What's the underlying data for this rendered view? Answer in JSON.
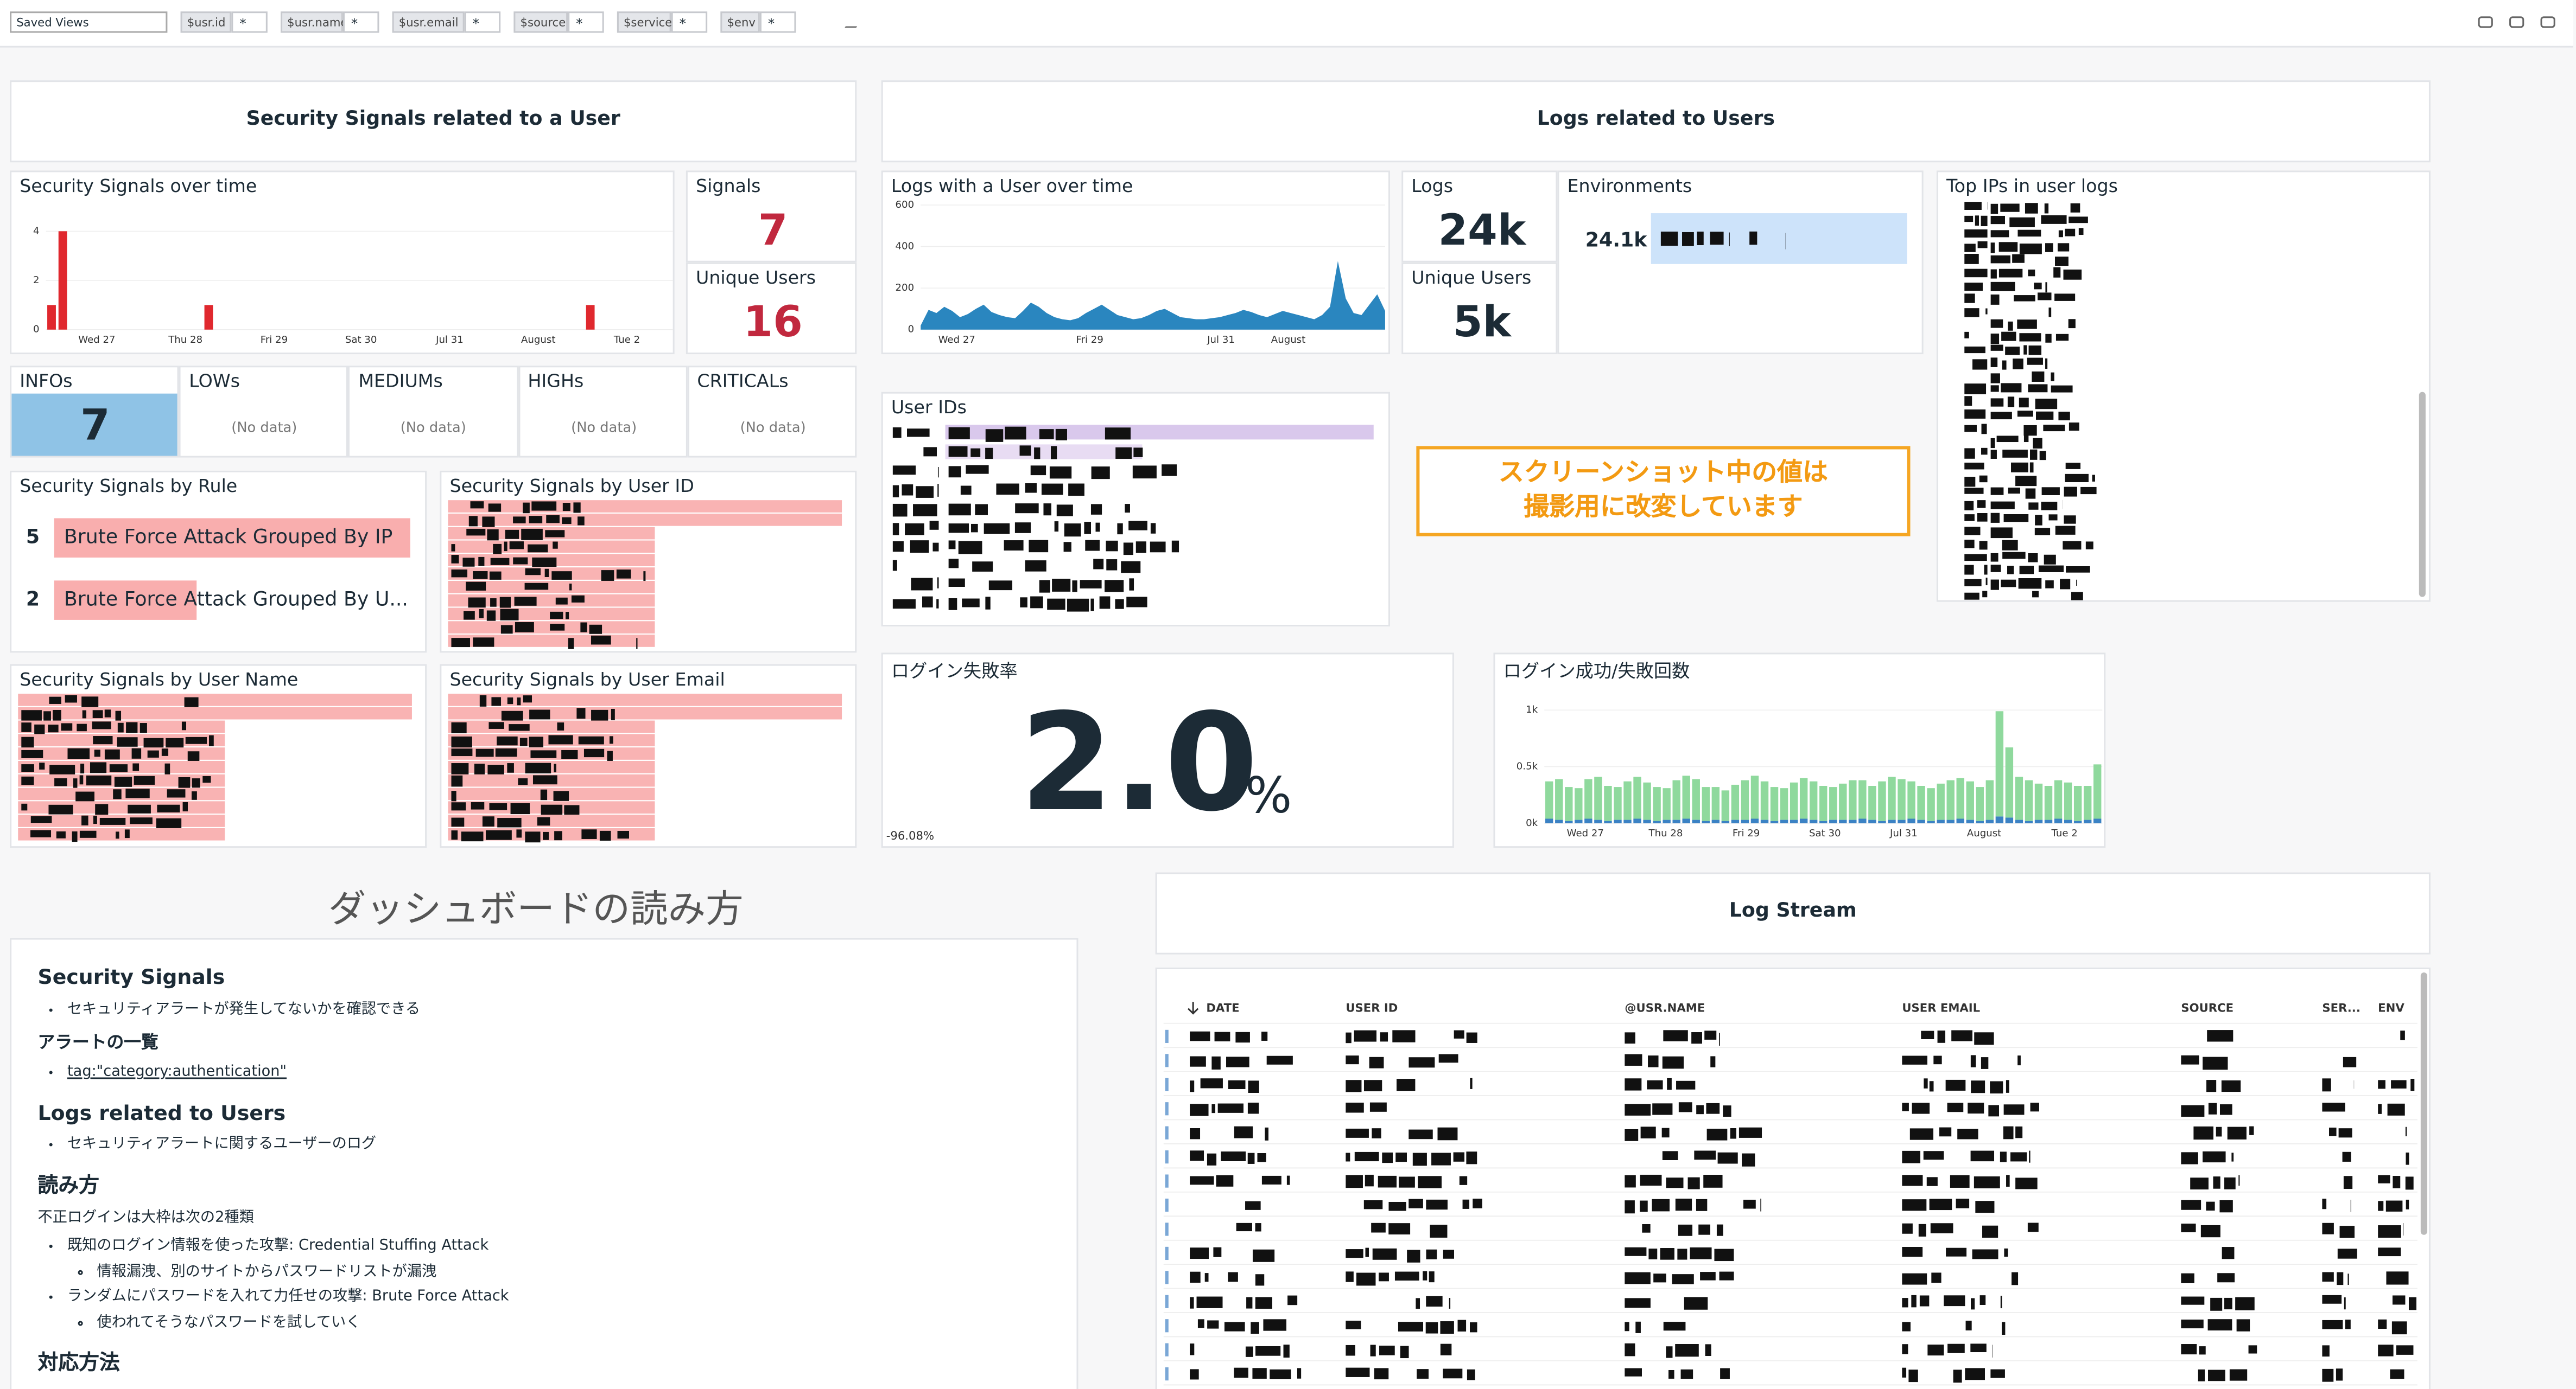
{
  "toolbar": {
    "saved_views": "Saved Views",
    "variables": [
      {
        "name": "$usr.id",
        "value": "*"
      },
      {
        "name": "$usr.name",
        "value": "*"
      },
      {
        "name": "$usr.email",
        "value": "*"
      },
      {
        "name": "$source",
        "value": "*"
      },
      {
        "name": "$service",
        "value": "*"
      },
      {
        "name": "$env",
        "value": "*"
      }
    ]
  },
  "security_group": {
    "title": "Security Signals related to a User"
  },
  "logs_group": {
    "title": "Logs related to Users"
  },
  "signals_over_time": {
    "title": "Security Signals over time",
    "type": "bar",
    "color": "#e0282e",
    "values": [
      1,
      4,
      0,
      0,
      0,
      0,
      0,
      0,
      0,
      0,
      0,
      0,
      0,
      0,
      1,
      0,
      0,
      0,
      0,
      0,
      0,
      0,
      0,
      0,
      0,
      0,
      0,
      0,
      0,
      0,
      0,
      0,
      0,
      0,
      0,
      0,
      0,
      0,
      0,
      0,
      0,
      0,
      0,
      0,
      0,
      0,
      0,
      0,
      1,
      0,
      0,
      0,
      0,
      0,
      0,
      0
    ],
    "ylim": [
      0,
      4.8
    ],
    "yticks": [
      0,
      2,
      4
    ],
    "xtick_labels": [
      "Wed 27",
      "Thu 28",
      "Fri 29",
      "Sat 30",
      "Jul 31",
      "August",
      "Tue 2"
    ]
  },
  "signals": {
    "title": "Signals",
    "value": 7
  },
  "unique_users_signals": {
    "title": "Unique Users",
    "value": 16
  },
  "severity": [
    {
      "title": "INFOs",
      "value": 7
    },
    {
      "title": "LOWs",
      "value": "(No data)"
    },
    {
      "title": "MEDIUMs",
      "value": "(No data)"
    },
    {
      "title": "HIGHs",
      "value": "(No data)"
    },
    {
      "title": "CRITICALs",
      "value": "(No data)"
    }
  ],
  "by_rule": {
    "title": "Security Signals by Rule",
    "rows": [
      {
        "value": 5,
        "label": "Brute Force Attack Grouped By IP"
      },
      {
        "value": 2,
        "label": "Brute Force Attack Grouped By U..."
      }
    ]
  },
  "by_user_id": {
    "title": "Security Signals by User ID"
  },
  "by_user_name": {
    "title": "Security Signals by User Name"
  },
  "by_user_email": {
    "title": "Security Signals by User Email"
  },
  "logs_over_time": {
    "title": "Logs with a User over time",
    "type": "area",
    "color": "#2a86bf",
    "values": [
      20,
      95,
      80,
      110,
      90,
      60,
      75,
      100,
      120,
      85,
      70,
      60,
      55,
      90,
      130,
      110,
      80,
      60,
      50,
      45,
      55,
      80,
      100,
      120,
      95,
      70,
      60,
      50,
      55,
      70,
      90,
      100,
      80,
      60,
      55,
      50,
      50,
      55,
      60,
      70,
      80,
      95,
      85,
      70,
      60,
      75,
      90,
      80,
      70,
      60,
      50,
      70,
      110,
      330,
      150,
      80,
      70,
      120,
      170,
      90
    ],
    "ylim": [
      0,
      600
    ],
    "yticks": [
      0,
      200,
      400,
      600
    ],
    "xtick_labels": [
      "Wed 27",
      "Fri 29",
      "Jul 31",
      "August"
    ]
  },
  "logs": {
    "title": "Logs",
    "value": "24k"
  },
  "unique_users_logs": {
    "title": "Unique Users",
    "value": "5k"
  },
  "environments": {
    "title": "Environments",
    "value": "24.1k"
  },
  "top_ips": {
    "title": "Top IPs in user logs"
  },
  "user_ids": {
    "title": "User IDs"
  },
  "notice": {
    "lines": [
      "スクリーンショット中の値は",
      "撮影用に改変しています"
    ]
  },
  "failure_rate": {
    "title": "ログイン失敗率",
    "value": "2.0",
    "unit": "%",
    "min_label": "-96.08%"
  },
  "login_counts": {
    "title": "ログイン成功/失敗回数",
    "type": "bar",
    "stacked": true,
    "series": [
      {
        "color": "#3b82c4",
        "values": [
          40,
          30,
          20,
          30,
          40,
          30,
          20,
          30,
          30,
          40,
          30,
          20,
          30,
          30,
          40,
          30,
          20,
          30,
          20,
          30,
          30,
          40,
          30,
          20,
          30,
          30,
          40,
          30,
          20,
          30,
          30,
          30,
          40,
          30,
          20,
          30,
          30,
          40,
          30,
          20,
          30,
          30,
          40,
          30,
          20,
          30,
          60,
          50,
          30,
          20,
          30,
          30,
          40,
          30,
          20,
          30,
          40
        ]
      },
      {
        "color": "#8fd99d",
        "values": [
          330,
          360,
          300,
          280,
          350,
          380,
          310,
          290,
          340,
          370,
          330,
          300,
          280,
          350,
          380,
          360,
          300,
          290,
          270,
          310,
          350,
          380,
          340,
          300,
          280,
          330,
          360,
          340,
          310,
          290,
          320,
          350,
          340,
          300,
          350,
          380,
          360,
          330,
          300,
          290,
          320,
          350,
          360,
          340,
          300,
          350,
          930,
          620,
          380,
          360,
          320,
          300,
          340,
          330,
          310,
          300,
          480
        ]
      }
    ],
    "ylim": [
      0,
      1000
    ],
    "yticks": [
      {
        "value": 0,
        "label": "0k"
      },
      {
        "value": 500,
        "label": "0.5k"
      },
      {
        "value": 1000,
        "label": "1k"
      }
    ],
    "xtick_labels": [
      "Wed 27",
      "Thu 28",
      "Fri 29",
      "Sat 30",
      "Jul 31",
      "August",
      "Tue 2"
    ]
  },
  "note": {
    "title": "ダッシュボードの読み方",
    "s1_heading": "Security Signals",
    "s1_item": "セキュリティアラートが発生してないかを確認できる",
    "s2_heading": "アラートの一覧",
    "s2_link": "tag:\"category:authentication\"",
    "s3_heading": "Logs related to Users",
    "s3_item": "セキュリティアラートに関するユーザーのログ",
    "s4_heading": "読み方",
    "s4_paragraph": "不正ログインは大枠は次の2種類",
    "s4_items": [
      {
        "text": "既知のログイン情報を使った攻撃: Credential Stuffing Attack",
        "sub": "情報漏洩、別のサイトからパスワードリストが漏洩"
      },
      {
        "text": "ランダムにパスワードを入れて力任せの攻撃: Brute Force Attack",
        "sub": "使われてそうなパスワードを試していく"
      }
    ],
    "s5_heading": "対応方法"
  },
  "log_stream": {
    "title": "Log Stream",
    "columns": [
      "DATE",
      "USER ID",
      "@USR.NAME",
      "USER EMAIL",
      "SOURCE",
      "SER...",
      "ENV"
    ]
  }
}
